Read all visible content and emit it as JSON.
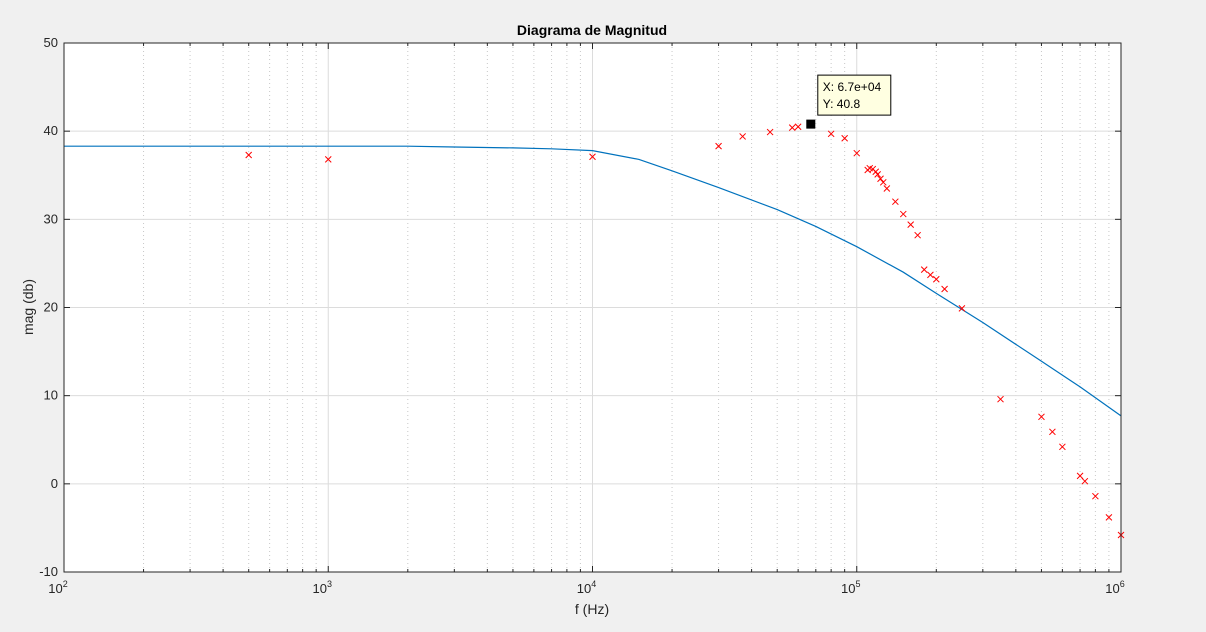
{
  "chart_data": {
    "type": "line",
    "title": "Diagrama de Magnitud",
    "xlabel": "f (Hz)",
    "ylabel": "mag (db)",
    "xscale": "log",
    "xlim": [
      100,
      1000000
    ],
    "ylim": [
      -10,
      50
    ],
    "xticks": [
      {
        "value": 100,
        "base": "10",
        "exp": "2"
      },
      {
        "value": 1000,
        "base": "10",
        "exp": "3"
      },
      {
        "value": 10000,
        "base": "10",
        "exp": "4"
      },
      {
        "value": 100000,
        "base": "10",
        "exp": "5"
      },
      {
        "value": 1000000,
        "base": "10",
        "exp": "6"
      }
    ],
    "yticks": [
      -10,
      0,
      10,
      20,
      30,
      40,
      50
    ],
    "grid": true,
    "series": [
      {
        "kind": "line",
        "color": "#0072bd",
        "x": [
          100,
          200,
          500,
          1000,
          2000,
          3000,
          5000,
          7000,
          10000,
          15000,
          20000,
          30000,
          50000,
          70000,
          100000,
          150000,
          200000,
          300000,
          500000,
          700000,
          1000000
        ],
        "y": [
          38.3,
          38.3,
          38.3,
          38.3,
          38.3,
          38.2,
          38.1,
          38.0,
          37.8,
          36.8,
          35.5,
          33.6,
          31.1,
          29.2,
          26.9,
          24.0,
          21.6,
          18.3,
          13.9,
          11.0,
          7.7
        ]
      },
      {
        "kind": "markers",
        "marker": "x",
        "color": "#ff0000",
        "x": [
          500,
          1000,
          10000,
          30000,
          37000,
          47000,
          57000,
          60000,
          80000,
          90000,
          100000,
          110000,
          112000,
          115000,
          118000,
          120000,
          123000,
          126000,
          130000,
          140000,
          150000,
          160000,
          170000,
          180000,
          190000,
          200000,
          215000,
          250000,
          350000,
          500000,
          550000,
          600000,
          700000,
          730000,
          800000,
          900000,
          1000000
        ],
        "y": [
          37.3,
          36.8,
          37.1,
          38.3,
          39.4,
          39.9,
          40.4,
          40.5,
          39.7,
          39.2,
          37.5,
          35.6,
          35.8,
          35.7,
          35.4,
          35.1,
          34.6,
          34.2,
          33.5,
          32.0,
          30.6,
          29.4,
          28.2,
          24.3,
          23.7,
          23.2,
          22.1,
          19.9,
          9.6,
          7.6,
          5.9,
          4.2,
          0.9,
          0.3,
          -1.4,
          -3.8,
          -5.8
        ]
      }
    ],
    "datatip": {
      "x": 67000,
      "y": 40.8,
      "x_label": "X: 6.7e+04",
      "y_label": "Y: 40.8"
    }
  }
}
